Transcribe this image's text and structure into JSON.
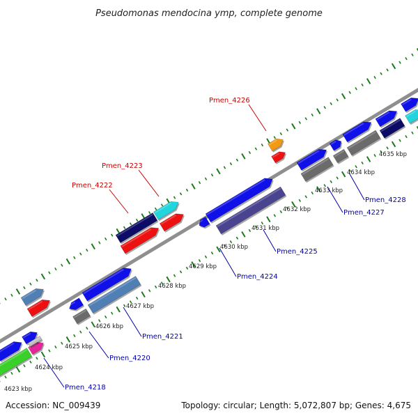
{
  "title": "Pseudomonas mendocina ymp, complete genome",
  "footer": {
    "accession": "Accession: NC_009439",
    "summary": "Topology: circular; Length: 5,072,807 bp; Genes: 4,675"
  },
  "colors": {
    "backbone": "#8f8f8f",
    "tick": "#1a7a1a",
    "blue": "#1010e8",
    "navy": "#0c0c66",
    "steel": "#4f7fb5",
    "slate": "#4a4490",
    "gray": "#6b6b6b",
    "red": "#ee1111",
    "cyan": "#22d4dc",
    "orange": "#f29a14",
    "green": "#3ad02a",
    "magenta": "#e8249a",
    "silver": "#bdbdbd",
    "label_red": "#cc0000",
    "label_blue": "#0000aa"
  },
  "scale_labels": [
    "4623 kbp",
    "4624 kbp",
    "4625 kbp",
    "4626 kbp",
    "4627 kbp",
    "4628 kbp",
    "4629 kbp",
    "4630 kbp",
    "4631 kbp",
    "4632 kbp",
    "4633 kbp",
    "4634 kbp",
    "4635 kbp"
  ],
  "gene_labels": [
    {
      "text": "Pmen_4226",
      "color": "red"
    },
    {
      "text": "Pmen_4223",
      "color": "red"
    },
    {
      "text": "Pmen_4222",
      "color": "red"
    },
    {
      "text": "Pmen_4228",
      "color": "blue"
    },
    {
      "text": "Pmen_4227",
      "color": "blue"
    },
    {
      "text": "Pmen_4225",
      "color": "blue"
    },
    {
      "text": "Pmen_4224",
      "color": "blue"
    },
    {
      "text": "Pmen_4221",
      "color": "blue"
    },
    {
      "text": "Pmen_4220",
      "color": "blue"
    },
    {
      "text": "Pmen_4218",
      "color": "blue"
    }
  ]
}
